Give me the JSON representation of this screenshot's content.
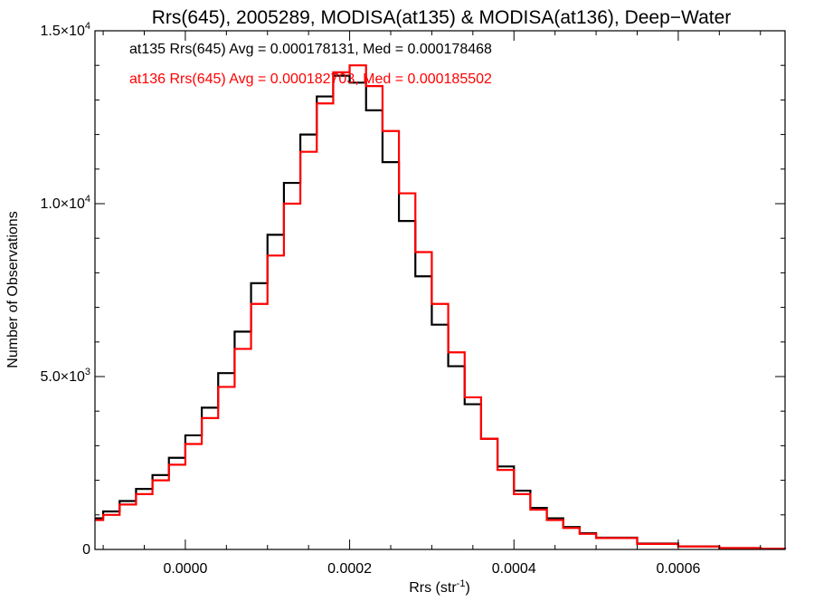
{
  "chart_data": {
    "type": "line",
    "title": "Rrs(645), 2005289, MODISA(at135) & MODISA(at136), Deep−Water",
    "xlabel": "Rrs (str",
    "xlabel_sup": "-1",
    "xlabel_end": ")",
    "ylabel": "Number of Observations",
    "xlim": [
      -0.00011,
      0.00073
    ],
    "ylim": [
      0,
      15000
    ],
    "xticks": [
      0.0,
      0.0002,
      0.0004,
      0.0006
    ],
    "xtick_labels": [
      "0.0000",
      "0.0002",
      "0.0004",
      "0.0006"
    ],
    "yticks": [
      0,
      5000,
      10000,
      15000
    ],
    "ytick_labels": [
      {
        "mant": "0",
        "exp": ""
      },
      {
        "mant": "5.0×10",
        "exp": "3"
      },
      {
        "mant": "1.0×10",
        "exp": "4"
      },
      {
        "mant": "1.5×10",
        "exp": "4"
      }
    ],
    "grid": false,
    "legend_position": "top-left",
    "series": [
      {
        "name": "at135 Rrs(645) Avg = 0.000178131, Med = 0.000178468",
        "color": "#000000",
        "x": [
          -0.00011,
          -0.0001,
          -8e-05,
          -6e-05,
          -4e-05,
          -2e-05,
          0.0,
          2e-05,
          4e-05,
          6e-05,
          8e-05,
          0.0001,
          0.00012,
          0.00014,
          0.00016,
          0.00018,
          0.0002,
          0.00022,
          0.00024,
          0.00026,
          0.00028,
          0.0003,
          0.00032,
          0.00034,
          0.00036,
          0.00038,
          0.0004,
          0.00042,
          0.00044,
          0.00046,
          0.00048,
          0.0005,
          0.00055,
          0.0006,
          0.00065,
          0.0007,
          0.00073
        ],
        "y": [
          900,
          1100,
          1400,
          1750,
          2150,
          2650,
          3300,
          4100,
          5100,
          6300,
          7700,
          9100,
          10600,
          12000,
          13100,
          13700,
          13500,
          12700,
          11200,
          9500,
          7900,
          6500,
          5300,
          4200,
          3200,
          2400,
          1700,
          1200,
          900,
          650,
          470,
          340,
          170,
          90,
          40,
          20,
          12
        ]
      },
      {
        "name": "at136 Rrs(645) Avg = 0.000182703, Med = 0.000185502",
        "color": "#ff0000",
        "x": [
          -0.00011,
          -0.0001,
          -8e-05,
          -6e-05,
          -4e-05,
          -2e-05,
          0.0,
          2e-05,
          4e-05,
          6e-05,
          8e-05,
          0.0001,
          0.00012,
          0.00014,
          0.00016,
          0.00018,
          0.0002,
          0.00022,
          0.00024,
          0.00026,
          0.00028,
          0.0003,
          0.00032,
          0.00034,
          0.00036,
          0.00038,
          0.0004,
          0.00042,
          0.00044,
          0.00046,
          0.00048,
          0.0005,
          0.00055,
          0.0006,
          0.00065,
          0.0007,
          0.00073
        ],
        "y": [
          850,
          1000,
          1300,
          1600,
          2000,
          2450,
          3050,
          3800,
          4700,
          5800,
          7100,
          8500,
          10000,
          11500,
          12900,
          13800,
          14000,
          13400,
          12100,
          10300,
          8600,
          7100,
          5700,
          4400,
          3200,
          2300,
          1600,
          1150,
          850,
          620,
          450,
          330,
          160,
          85,
          40,
          20,
          12
        ]
      }
    ]
  }
}
